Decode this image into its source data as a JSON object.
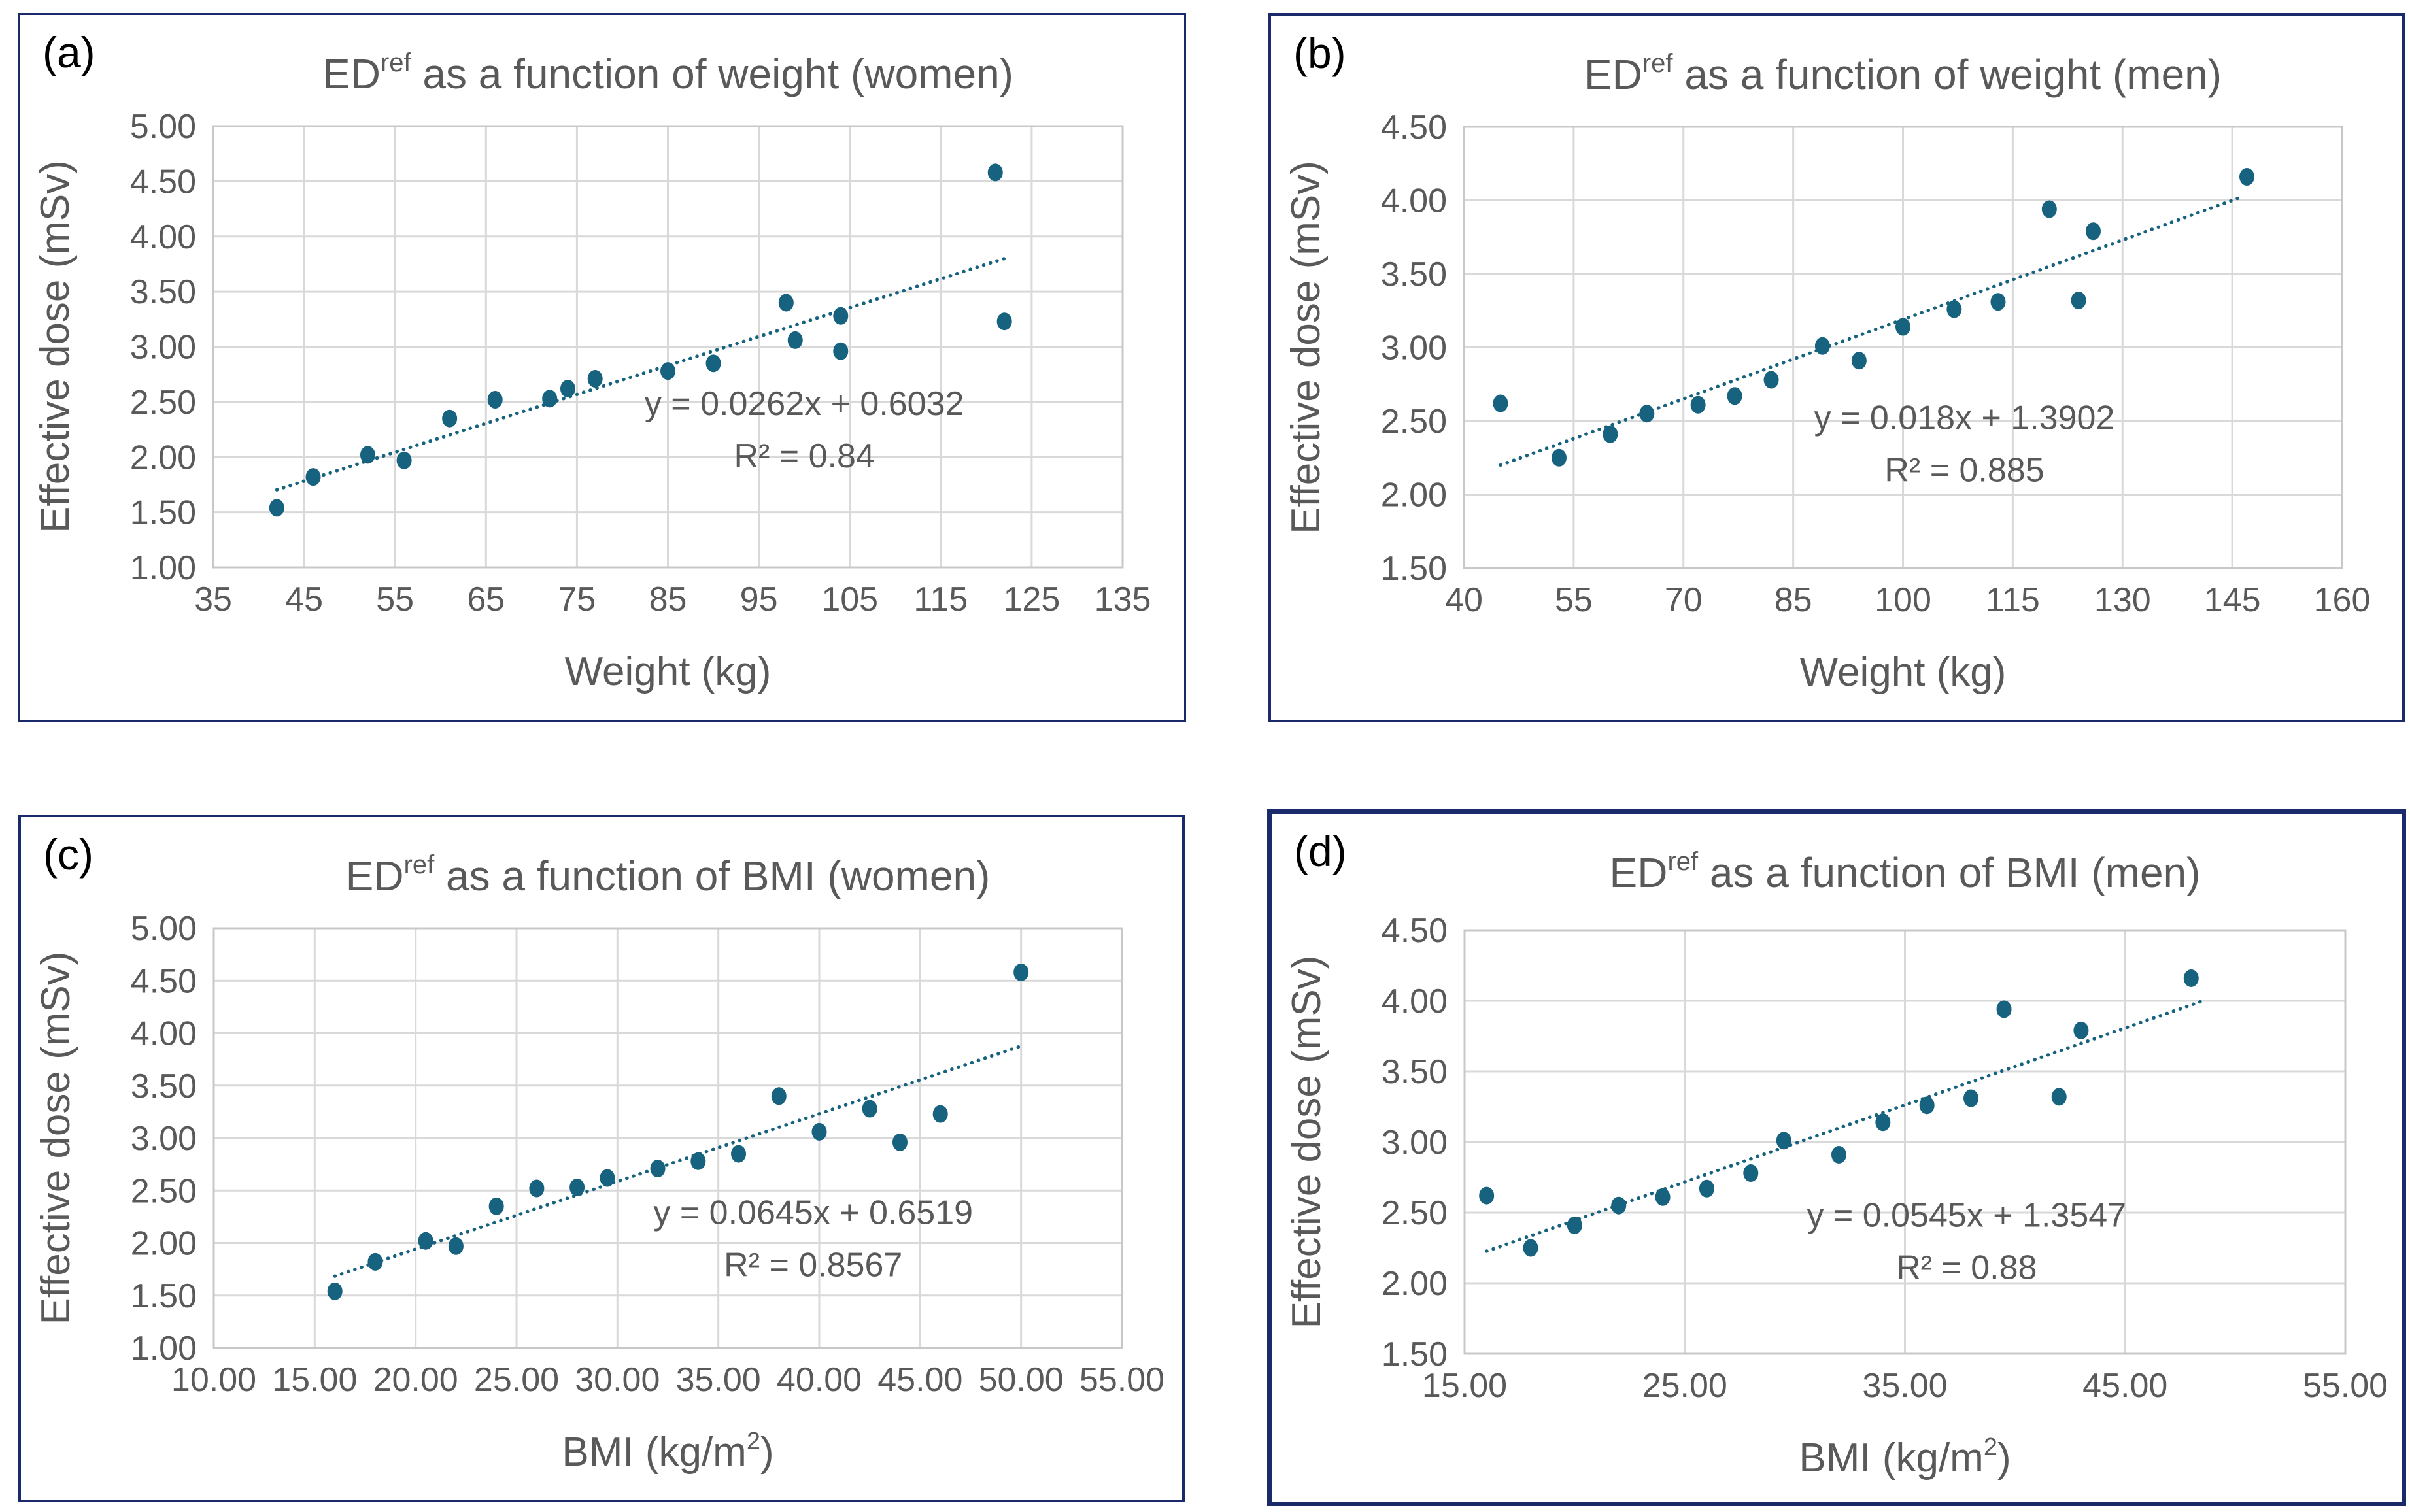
{
  "colors": {
    "accent": "#16627F",
    "grid": "#D9D9D9",
    "plot_border": "#C8C8C8",
    "text": "#595959",
    "panel_border": "#1B2A6B",
    "panel_label": "#000000",
    "background": "#FFFFFF"
  },
  "chart_data": [
    {
      "type": "scatter",
      "panel_label": "(a)",
      "title": {
        "pre": "ED",
        "sup": "ref",
        "post": " as a function of weight (women)"
      },
      "xlabel": {
        "pre": "Weight (kg)",
        "sup": "",
        "post": ""
      },
      "ylabel": "Effective dose (mSv)",
      "xlim": [
        35,
        135
      ],
      "ylim": [
        1.0,
        5.0
      ],
      "x_tick_values": [
        35,
        45,
        55,
        65,
        75,
        85,
        95,
        105,
        115,
        125,
        135
      ],
      "x_tick_labels": [
        "35",
        "45",
        "55",
        "65",
        "75",
        "85",
        "95",
        "105",
        "115",
        "125",
        "135"
      ],
      "y_tick_values": [
        1.0,
        1.5,
        2.0,
        2.5,
        3.0,
        3.5,
        4.0,
        4.5,
        5.0
      ],
      "y_tick_labels": [
        "1.00",
        "1.50",
        "2.00",
        "2.50",
        "3.00",
        "3.50",
        "4.00",
        "4.50",
        "5.00"
      ],
      "points": [
        [
          42,
          1.54
        ],
        [
          46,
          1.82
        ],
        [
          52,
          2.02
        ],
        [
          56,
          1.97
        ],
        [
          61,
          2.35
        ],
        [
          66,
          2.52
        ],
        [
          72,
          2.53
        ],
        [
          74,
          2.62
        ],
        [
          77,
          2.71
        ],
        [
          85,
          2.78
        ],
        [
          90,
          2.85
        ],
        [
          98,
          3.4
        ],
        [
          99,
          3.06
        ],
        [
          104,
          3.28
        ],
        [
          104,
          2.96
        ],
        [
          121,
          4.58
        ],
        [
          122,
          3.23
        ]
      ],
      "trendline": {
        "slope": 0.0262,
        "intercept": 0.6032,
        "x1": 42,
        "x2": 122,
        "equation": "y = 0.0262x + 0.6032",
        "r2": "R² = 0.84"
      },
      "annotation": {
        "fx": 0.65,
        "fy": 0.655
      }
    },
    {
      "type": "scatter",
      "panel_label": "(b)",
      "title": {
        "pre": "ED",
        "sup": "ref",
        "post": " as a function of weight (men)"
      },
      "xlabel": {
        "pre": "Weight (kg)",
        "sup": "",
        "post": ""
      },
      "ylabel": "Effective dose (mSv)",
      "xlim": [
        40,
        160
      ],
      "ylim": [
        1.5,
        4.5
      ],
      "x_tick_values": [
        40,
        55,
        70,
        85,
        100,
        115,
        130,
        145,
        160
      ],
      "x_tick_labels": [
        "40",
        "55",
        "70",
        "85",
        "100",
        "115",
        "130",
        "145",
        "160"
      ],
      "y_tick_values": [
        1.5,
        2.0,
        2.5,
        3.0,
        3.5,
        4.0,
        4.5
      ],
      "y_tick_labels": [
        "1.50",
        "2.00",
        "2.50",
        "3.00",
        "3.50",
        "4.00",
        "4.50"
      ],
      "points": [
        [
          45,
          2.62
        ],
        [
          53,
          2.25
        ],
        [
          60,
          2.41
        ],
        [
          65,
          2.55
        ],
        [
          72,
          2.61
        ],
        [
          77,
          2.67
        ],
        [
          82,
          2.78
        ],
        [
          89,
          3.01
        ],
        [
          94,
          2.91
        ],
        [
          100,
          3.14
        ],
        [
          107,
          3.26
        ],
        [
          113,
          3.31
        ],
        [
          120,
          3.94
        ],
        [
          124,
          3.32
        ],
        [
          126,
          3.79
        ],
        [
          147,
          4.16
        ]
      ],
      "trendline": {
        "slope": 0.018,
        "intercept": 1.3902,
        "x1": 45,
        "x2": 146,
        "equation": "y = 0.018x + 1.3902",
        "r2": "R² = 0.885"
      },
      "annotation": {
        "fx": 0.57,
        "fy": 0.685
      }
    },
    {
      "type": "scatter",
      "panel_label": "(c)",
      "title": {
        "pre": "ED",
        "sup": "ref",
        "post": " as a function of BMI (women)"
      },
      "xlabel": {
        "pre": "BMI (kg/m",
        "sup": "2",
        "post": ")"
      },
      "ylabel": "Effective dose (mSv)",
      "xlim": [
        10,
        55
      ],
      "ylim": [
        1.0,
        5.0
      ],
      "x_tick_values": [
        10,
        15,
        20,
        25,
        30,
        35,
        40,
        45,
        50,
        55
      ],
      "x_tick_labels": [
        "10.00",
        "15.00",
        "20.00",
        "25.00",
        "30.00",
        "35.00",
        "40.00",
        "45.00",
        "50.00",
        "55.00"
      ],
      "y_tick_values": [
        1.0,
        1.5,
        2.0,
        2.5,
        3.0,
        3.5,
        4.0,
        4.5,
        5.0
      ],
      "y_tick_labels": [
        "1.00",
        "1.50",
        "2.00",
        "2.50",
        "3.00",
        "3.50",
        "4.00",
        "4.50",
        "5.00"
      ],
      "points": [
        [
          16,
          1.54
        ],
        [
          18,
          1.82
        ],
        [
          20.5,
          2.02
        ],
        [
          22,
          1.97
        ],
        [
          24,
          2.35
        ],
        [
          26,
          2.52
        ],
        [
          28,
          2.53
        ],
        [
          29.5,
          2.62
        ],
        [
          32,
          2.71
        ],
        [
          34,
          2.78
        ],
        [
          36,
          2.85
        ],
        [
          38,
          3.4
        ],
        [
          40,
          3.06
        ],
        [
          42.5,
          3.28
        ],
        [
          44,
          2.96
        ],
        [
          46,
          3.23
        ],
        [
          50,
          4.58
        ]
      ],
      "trendline": {
        "slope": 0.0645,
        "intercept": 0.6519,
        "x1": 16,
        "x2": 50,
        "equation": "y = 0.0645x + 0.6519",
        "r2": "R² = 0.8567"
      },
      "annotation": {
        "fx": 0.66,
        "fy": 0.705
      }
    },
    {
      "type": "scatter",
      "panel_label": "(d)",
      "title": {
        "pre": "ED",
        "sup": "ref",
        "post": " as a function of BMI (men)"
      },
      "xlabel": {
        "pre": "BMI (kg/m",
        "sup": "2",
        "post": ")"
      },
      "ylabel": "Effective dose (mSv)",
      "xlim": [
        15,
        55
      ],
      "ylim": [
        1.5,
        4.5
      ],
      "x_tick_values": [
        15,
        25,
        35,
        45,
        55
      ],
      "x_tick_labels": [
        "15.00",
        "25.00",
        "35.00",
        "45.00",
        "55.00"
      ],
      "y_tick_values": [
        1.5,
        2.0,
        2.5,
        3.0,
        3.5,
        4.0,
        4.5
      ],
      "y_tick_labels": [
        "1.50",
        "2.00",
        "2.50",
        "3.00",
        "3.50",
        "4.00",
        "4.50"
      ],
      "points": [
        [
          16,
          2.62
        ],
        [
          18,
          2.25
        ],
        [
          20,
          2.41
        ],
        [
          22,
          2.55
        ],
        [
          24,
          2.61
        ],
        [
          26,
          2.67
        ],
        [
          28,
          2.78
        ],
        [
          29.5,
          3.01
        ],
        [
          32,
          2.91
        ],
        [
          34,
          3.14
        ],
        [
          36,
          3.26
        ],
        [
          38,
          3.31
        ],
        [
          39.5,
          3.94
        ],
        [
          42,
          3.32
        ],
        [
          43,
          3.79
        ],
        [
          48,
          4.16
        ]
      ],
      "trendline": {
        "slope": 0.0545,
        "intercept": 1.3547,
        "x1": 16,
        "x2": 48.5,
        "equation": "y = 0.0545x + 1.3547",
        "r2": "R² = 0.88"
      },
      "annotation": {
        "fx": 0.57,
        "fy": 0.7
      }
    }
  ]
}
